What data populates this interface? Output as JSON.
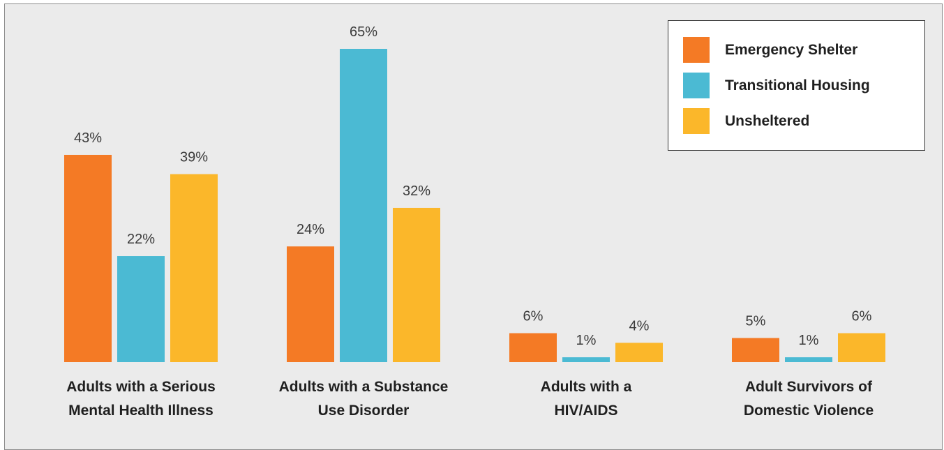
{
  "chart_data": {
    "type": "bar",
    "categories": [
      [
        "Adults with a Serious",
        "Mental Health Illness"
      ],
      [
        "Adults with a Substance",
        "Use Disorder"
      ],
      [
        "Adults with a",
        "HIV/AIDS"
      ],
      [
        "Adult Survivors of",
        "Domestic Violence"
      ]
    ],
    "series": [
      {
        "name": "Emergency Shelter",
        "values": [
          43,
          24,
          6,
          5
        ],
        "labels": [
          "43%",
          "24%",
          "6%",
          "5%"
        ],
        "color": "#f47a25"
      },
      {
        "name": "Transitional Housing",
        "values": [
          22,
          65,
          1,
          1
        ],
        "labels": [
          "22%",
          "65%",
          "1%",
          "1%"
        ],
        "color": "#4bbad3"
      },
      {
        "name": "Unsheltered",
        "values": [
          39,
          32,
          4,
          6
        ],
        "labels": [
          "39%",
          "32%",
          "4%",
          "6%"
        ],
        "color": "#fbb72a"
      }
    ],
    "ylim": [
      0,
      65
    ],
    "value_unit": "%",
    "grid": false,
    "legend_position": "top-right",
    "title": "",
    "xlabel": "",
    "ylabel": ""
  }
}
